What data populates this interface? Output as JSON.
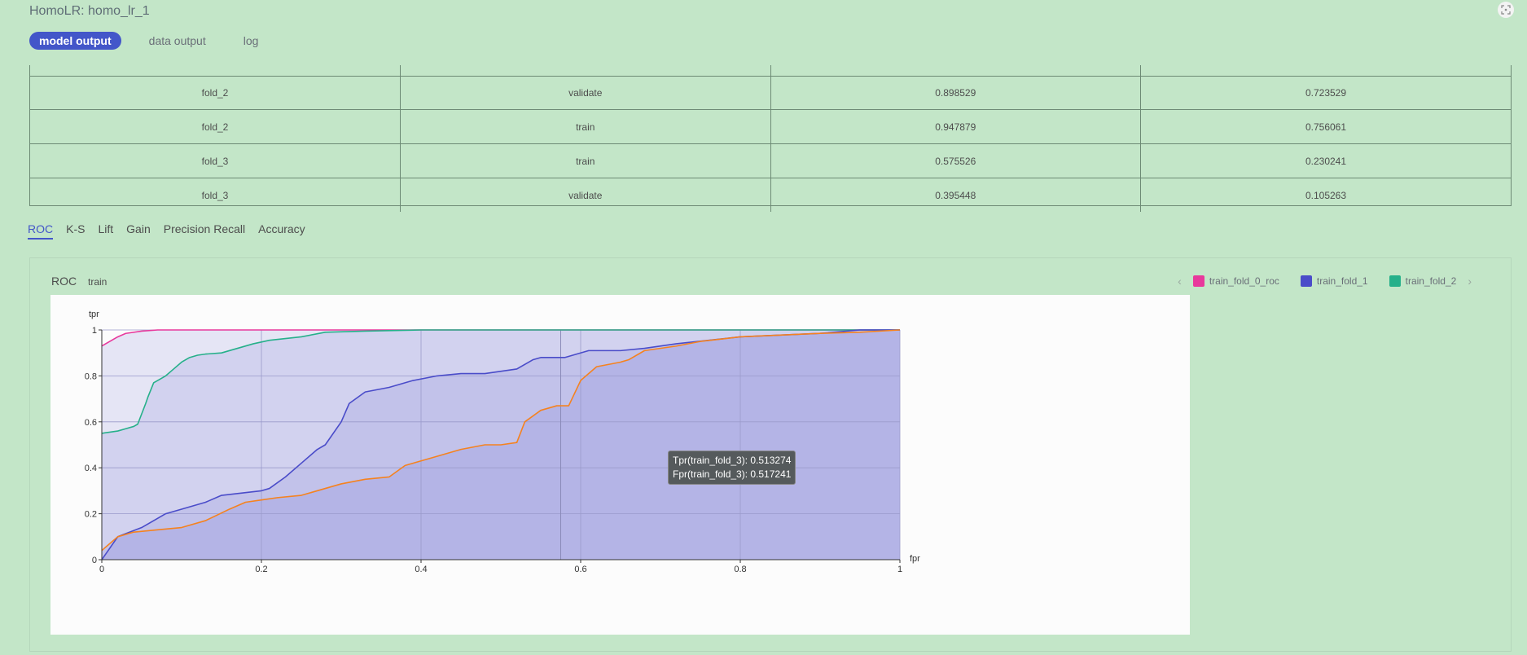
{
  "header": {
    "title": "HomoLR: homo_lr_1"
  },
  "top_tabs": [
    {
      "label": "model output",
      "active": true
    },
    {
      "label": "data output",
      "active": false
    },
    {
      "label": "log",
      "active": false
    }
  ],
  "table": {
    "rows": [
      [
        "fold_2",
        "validate",
        "0.898529",
        "0.723529"
      ],
      [
        "fold_2",
        "train",
        "0.947879",
        "0.756061"
      ],
      [
        "fold_3",
        "train",
        "0.575526",
        "0.230241"
      ],
      [
        "fold_3",
        "validate",
        "0.395448",
        "0.105263"
      ]
    ]
  },
  "metric_tabs": [
    "ROC",
    "K-S",
    "Lift",
    "Gain",
    "Precision Recall",
    "Accuracy"
  ],
  "panel": {
    "title": "ROC",
    "subtitle": "train",
    "prev_arrow": "‹",
    "next_arrow": "›",
    "legend": [
      {
        "label": "train_fold_0_roc",
        "color": "#e8399c"
      },
      {
        "label": "train_fold_1",
        "color": "#4a4cc9"
      },
      {
        "label": "train_fold_2",
        "color": "#26b08a"
      }
    ]
  },
  "tooltip": {
    "line1": "Tpr(train_fold_3): 0.513274",
    "line2": "Fpr(train_fold_3): 0.517241"
  },
  "chart_data": {
    "type": "area",
    "xlabel": "fpr",
    "ylabel": "tpr",
    "xlim": [
      0,
      1
    ],
    "ylim": [
      0,
      1
    ],
    "x_ticks": [
      "0",
      "0.2",
      "0.4",
      "0.6",
      "0.8",
      "1"
    ],
    "y_ticks": [
      "0",
      "0.2",
      "0.4",
      "0.6",
      "0.8",
      "1"
    ],
    "grid": true,
    "hover_x": 0.575,
    "series": [
      {
        "name": "train_fold_0_roc",
        "color": "#e8399c",
        "x": [
          0,
          0.01,
          0.02,
          0.03,
          0.05,
          0.07,
          0.1,
          1
        ],
        "y": [
          0.93,
          0.95,
          0.97,
          0.985,
          0.995,
          1,
          1,
          1
        ]
      },
      {
        "name": "train_fold_2",
        "color": "#26b08a",
        "x": [
          0,
          0.02,
          0.03,
          0.04,
          0.045,
          0.055,
          0.058,
          0.065,
          0.07,
          0.08,
          0.09,
          0.1,
          0.11,
          0.12,
          0.13,
          0.15,
          0.17,
          0.19,
          0.21,
          0.25,
          0.28,
          0.33,
          0.4,
          0.95,
          1
        ],
        "y": [
          0.55,
          0.56,
          0.57,
          0.58,
          0.59,
          0.68,
          0.71,
          0.77,
          0.78,
          0.8,
          0.83,
          0.86,
          0.88,
          0.89,
          0.895,
          0.9,
          0.92,
          0.94,
          0.955,
          0.97,
          0.99,
          0.995,
          1,
          1,
          1
        ]
      },
      {
        "name": "train_fold_1",
        "color": "#4a4cc9",
        "x": [
          0,
          0.02,
          0.05,
          0.08,
          0.1,
          0.13,
          0.15,
          0.2,
          0.21,
          0.23,
          0.25,
          0.27,
          0.28,
          0.3,
          0.31,
          0.33,
          0.36,
          0.39,
          0.42,
          0.45,
          0.48,
          0.52,
          0.54,
          0.55,
          0.58,
          0.61,
          0.65,
          0.68,
          0.72,
          0.8,
          0.9,
          0.95,
          1
        ],
        "y": [
          0,
          0.1,
          0.14,
          0.2,
          0.22,
          0.25,
          0.28,
          0.3,
          0.31,
          0.36,
          0.42,
          0.48,
          0.5,
          0.6,
          0.68,
          0.73,
          0.75,
          0.78,
          0.8,
          0.81,
          0.81,
          0.83,
          0.87,
          0.88,
          0.88,
          0.91,
          0.91,
          0.92,
          0.94,
          0.97,
          0.985,
          1,
          1
        ]
      },
      {
        "name": "train_fold_3",
        "color": "#f5821f",
        "x": [
          0,
          0.02,
          0.04,
          0.07,
          0.1,
          0.13,
          0.16,
          0.18,
          0.2,
          0.22,
          0.25,
          0.28,
          0.3,
          0.33,
          0.36,
          0.38,
          0.4,
          0.42,
          0.45,
          0.48,
          0.5,
          0.52,
          0.53,
          0.55,
          0.57,
          0.585,
          0.6,
          0.62,
          0.65,
          0.66,
          0.68,
          0.72,
          0.75,
          0.8,
          0.9,
          0.95,
          1
        ],
        "y": [
          0.04,
          0.1,
          0.12,
          0.13,
          0.14,
          0.17,
          0.22,
          0.25,
          0.26,
          0.27,
          0.28,
          0.31,
          0.33,
          0.35,
          0.36,
          0.41,
          0.43,
          0.45,
          0.48,
          0.5,
          0.5,
          0.51,
          0.6,
          0.65,
          0.67,
          0.67,
          0.78,
          0.84,
          0.86,
          0.87,
          0.91,
          0.93,
          0.95,
          0.97,
          0.985,
          0.99,
          1
        ]
      }
    ]
  }
}
